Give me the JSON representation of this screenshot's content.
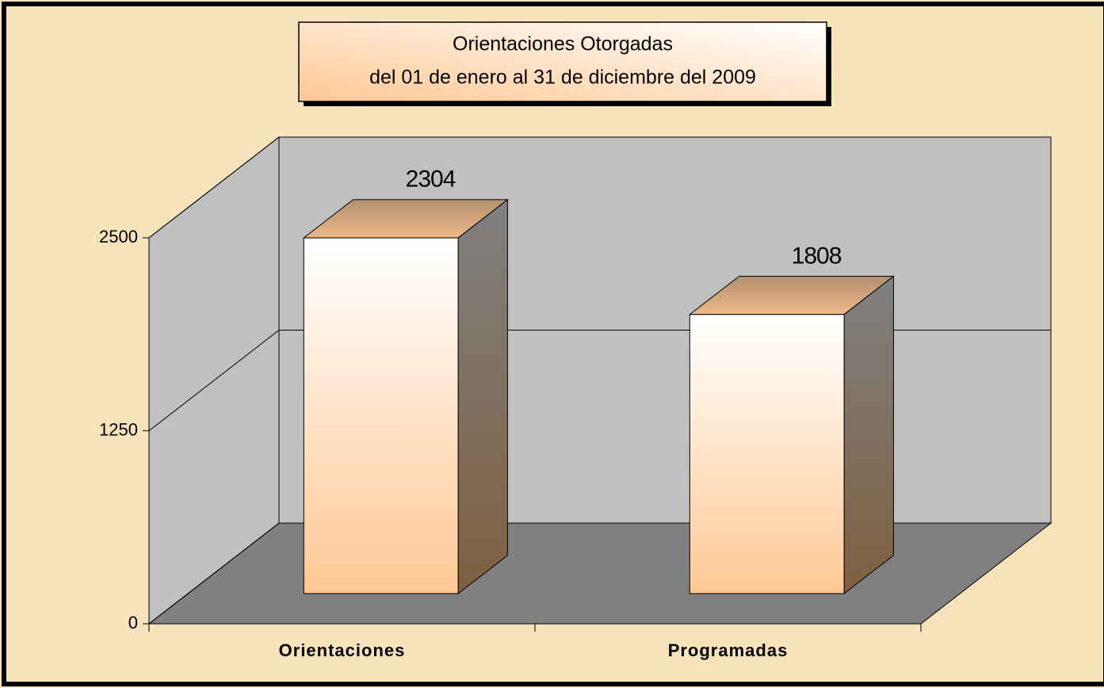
{
  "chart_data": {
    "type": "bar3d",
    "title": "Orientaciones Otorgadas",
    "subtitle": "del 01 de enero al 31 de diciembre del 2009",
    "categories": [
      "Orientaciones",
      "Programadas"
    ],
    "values": [
      2304,
      1808
    ],
    "ylim": [
      0,
      2500
    ],
    "yticks": [
      0,
      1250,
      2500
    ],
    "grid": true,
    "color": "#ffc894"
  }
}
